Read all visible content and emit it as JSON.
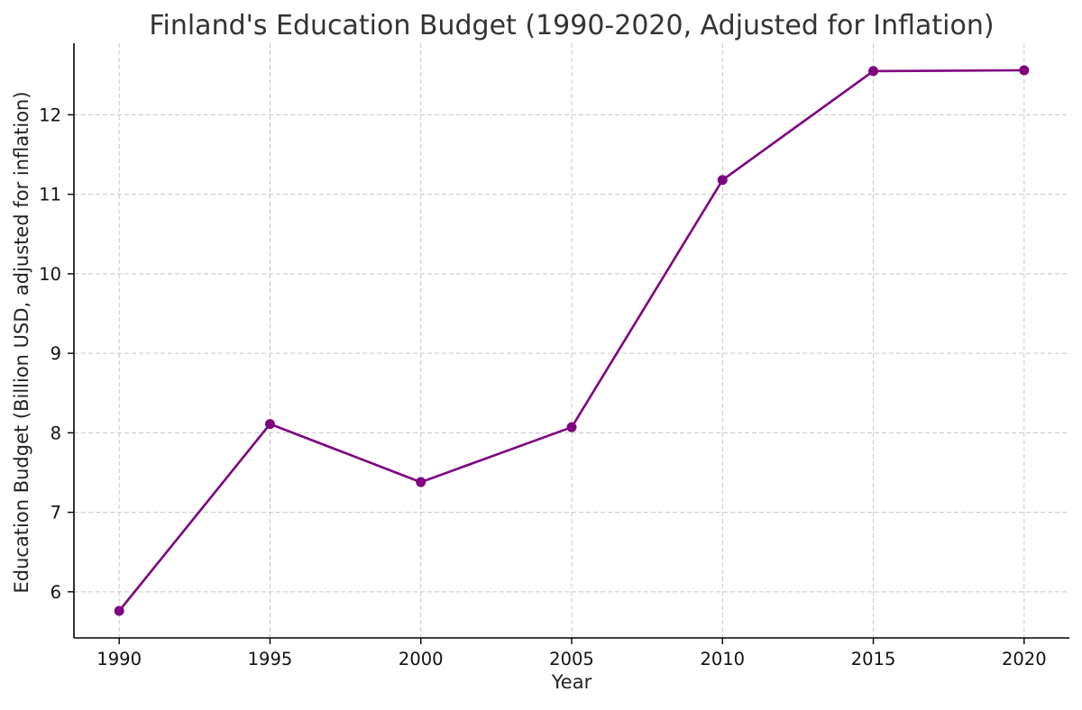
{
  "chart_data": {
    "type": "line",
    "title": "Finland's Education Budget (1990-2020, Adjusted for Inflation)",
    "xlabel": "Year",
    "ylabel": "Education Budget (Billion USD, adjusted for inflation)",
    "x": [
      1990,
      1995,
      2000,
      2005,
      2010,
      2015,
      2020
    ],
    "series": [
      {
        "values": [
          5.76,
          8.11,
          7.38,
          8.07,
          11.18,
          12.55,
          12.56
        ],
        "color": "#800080",
        "marker": "circle"
      }
    ],
    "x_ticks": [
      1990,
      1995,
      2000,
      2005,
      2010,
      2015,
      2020
    ],
    "y_ticks": [
      6,
      7,
      8,
      9,
      10,
      11,
      12
    ],
    "xlim": [
      1988.5,
      2021.5
    ],
    "ylim": [
      5.42,
      12.9
    ],
    "grid": true,
    "grid_style": "dashed",
    "legend": false
  }
}
